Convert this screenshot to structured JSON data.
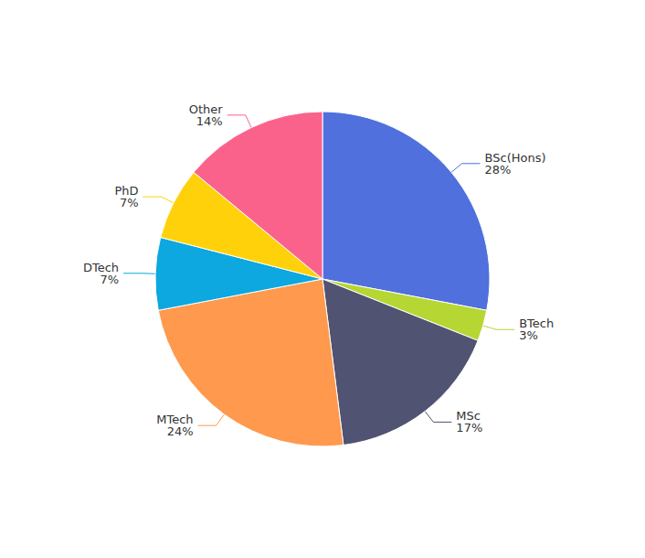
{
  "chart_data": {
    "type": "pie",
    "categories": [
      "BSc(Hons)",
      "BTech",
      "MSc",
      "MTech",
      "DTech",
      "PhD",
      "Other"
    ],
    "values": [
      28,
      3,
      17,
      24,
      7,
      7,
      14
    ],
    "value_labels": [
      "28%",
      "3%",
      "17%",
      "24%",
      "7%",
      "7%",
      "14%"
    ],
    "data_labels": true
  }
}
